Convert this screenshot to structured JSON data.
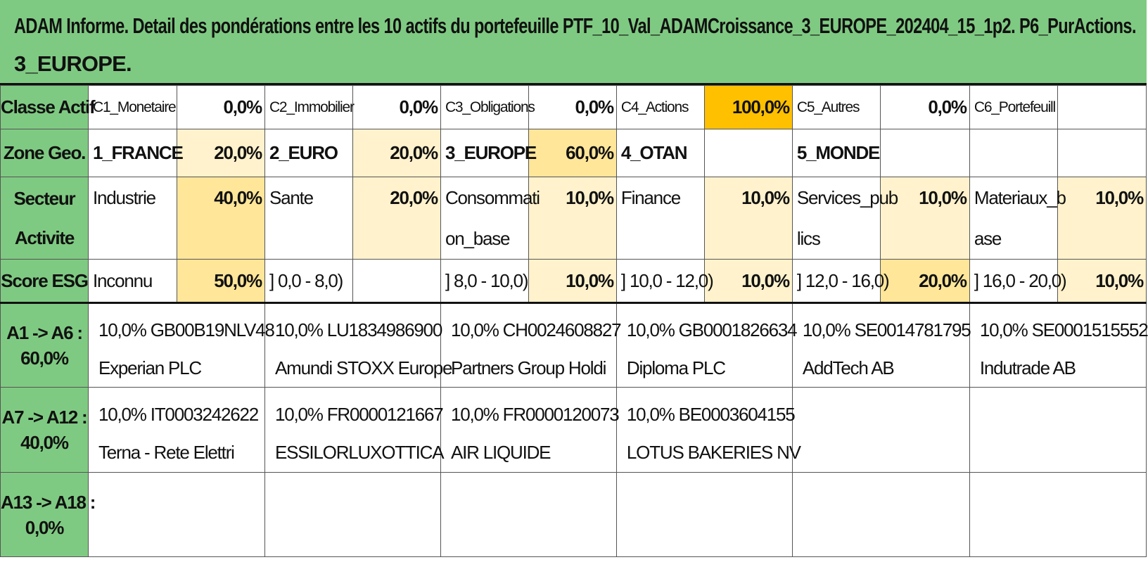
{
  "title": {
    "line1": "ADAM Informe. Detail des pondérations entre les 10 actifs du portefeuille PTF_10_Val_ADAMCroissance_3_EUROPE_202404_15_1p2. P6_PurActions.",
    "line2": "3_EUROPE."
  },
  "rows": {
    "classe": {
      "header": "Classe Actif",
      "cells": [
        {
          "label": "C1_Monetaire",
          "value": "0,0%"
        },
        {
          "label": "C2_Immobilier",
          "value": "0,0%"
        },
        {
          "label": "C3_Obligations",
          "value": "0,0%"
        },
        {
          "label": "C4_Actions",
          "value": "100,0%"
        },
        {
          "label": "C5_Autres",
          "value": "0,0%"
        },
        {
          "label": "C6_Portefeuill",
          "value": ""
        }
      ]
    },
    "zone": {
      "header": "Zone Geo.",
      "cells": [
        {
          "label": "1_FRANCE",
          "value": "20,0%"
        },
        {
          "label": "2_EURO",
          "value": "20,0%"
        },
        {
          "label": "3_EUROPE",
          "value": "60,0%"
        },
        {
          "label": "4_OTAN",
          "value": ""
        },
        {
          "label": "5_MONDE",
          "value": ""
        },
        {
          "label": "",
          "value": ""
        }
      ]
    },
    "secteur": {
      "header_line1": "Secteur",
      "header_line2": "Activite",
      "cells": [
        {
          "label1": "Industrie",
          "label2": "",
          "value": "40,0%"
        },
        {
          "label1": "Sante",
          "label2": "",
          "value": "20,0%"
        },
        {
          "label1": "Consommati",
          "label2": "on_base",
          "value": "10,0%"
        },
        {
          "label1": "Finance",
          "label2": "",
          "value": "10,0%"
        },
        {
          "label1": "Services_pub",
          "label2": "lics",
          "value": "10,0%"
        },
        {
          "label1": "Materiaux_b",
          "label2": "ase",
          "value": "10,0%"
        }
      ]
    },
    "esg": {
      "header": "Score ESG",
      "cells": [
        {
          "label": "Inconnu",
          "value": "50,0%"
        },
        {
          "label": "] 0,0 - 8,0)",
          "value": ""
        },
        {
          "label": "] 8,0 - 10,0)",
          "value": "10,0%"
        },
        {
          "label": "] 10,0 - 12,0)",
          "value": "10,0%"
        },
        {
          "label": "] 12,0 - 16,0)",
          "value": "20,0%"
        },
        {
          "label": "] 16,0 - 20,0)",
          "value": "10,0%"
        }
      ]
    }
  },
  "asset_groups": [
    {
      "header_line1": "A1 -> A6 :",
      "header_line2": "60,0%",
      "assets": [
        {
          "line1": "10,0% GB00B19NLV48",
          "line2": "Experian PLC"
        },
        {
          "line1": "10,0% LU1834986900",
          "line2": "Amundi STOXX Europe"
        },
        {
          "line1": "10,0% CH0024608827",
          "line2": "Partners Group Holdi"
        },
        {
          "line1": "10,0% GB0001826634",
          "line2": "Diploma PLC"
        },
        {
          "line1": "10,0% SE0014781795",
          "line2": "AddTech AB"
        },
        {
          "line1": "10,0% SE0001515552",
          "line2": "Indutrade AB"
        }
      ]
    },
    {
      "header_line1": "A7 -> A12 :",
      "header_line2": "40,0%",
      "assets": [
        {
          "line1": "10,0% IT0003242622",
          "line2": "Terna - Rete Elettri"
        },
        {
          "line1": "10,0% FR0000121667",
          "line2": "ESSILORLUXOTTICA"
        },
        {
          "line1": "10,0% FR0000120073",
          "line2": "AIR LIQUIDE"
        },
        {
          "line1": "10,0% BE0003604155",
          "line2": "LOTUS BAKERIES NV"
        },
        {
          "line1": "",
          "line2": ""
        },
        {
          "line1": "",
          "line2": ""
        }
      ]
    },
    {
      "header_line1": "A13 -> A18 :",
      "header_line2": "0,0%",
      "assets": [
        {
          "line1": "",
          "line2": ""
        },
        {
          "line1": "",
          "line2": ""
        },
        {
          "line1": "",
          "line2": ""
        },
        {
          "line1": "",
          "line2": ""
        },
        {
          "line1": "",
          "line2": ""
        },
        {
          "line1": "",
          "line2": ""
        }
      ]
    }
  ],
  "colors": {
    "header_green": "#7fca82",
    "highlight_strong": "#ffc000",
    "highlight_mid": "#ffe699",
    "highlight_light": "#fff2cc"
  }
}
